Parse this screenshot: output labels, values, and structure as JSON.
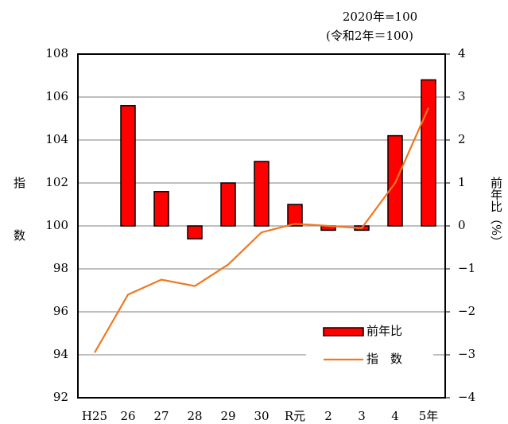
{
  "chart_data": {
    "type": "combo",
    "subtitle": "2020年=100",
    "subtitle2": "(令和2年＝100)",
    "ylabel": "指　数",
    "y2label": "前年比（%）",
    "categories": [
      "H25",
      "26",
      "27",
      "28",
      "29",
      "30",
      "R元",
      "2",
      "3",
      "4",
      "5年"
    ],
    "series": [
      {
        "name": "前年比",
        "type": "bar",
        "axis": "y2",
        "color": "#ff0000",
        "values": [
          null,
          2.8,
          0.8,
          -0.3,
          1.0,
          1.5,
          0.5,
          -0.1,
          -0.1,
          2.1,
          3.4
        ]
      },
      {
        "name": "指　数",
        "type": "line",
        "axis": "y",
        "color": "#f07820",
        "values": [
          94.1,
          96.8,
          97.5,
          97.2,
          98.2,
          99.7,
          100.1,
          100.0,
          99.9,
          102.0,
          105.5
        ]
      }
    ],
    "ylim": [
      92,
      108
    ],
    "yticks": [
      92,
      94,
      96,
      98,
      100,
      102,
      104,
      106,
      108
    ],
    "y2lim": [
      -4,
      4
    ],
    "y2ticks": [
      {
        "value": -4,
        "label": "−4"
      },
      {
        "value": -3,
        "label": "−3"
      },
      {
        "value": -2,
        "label": "−2"
      },
      {
        "value": -1,
        "label": "−1"
      },
      0,
      1,
      2,
      3,
      4
    ],
    "grid": true,
    "legend": "lower right"
  }
}
